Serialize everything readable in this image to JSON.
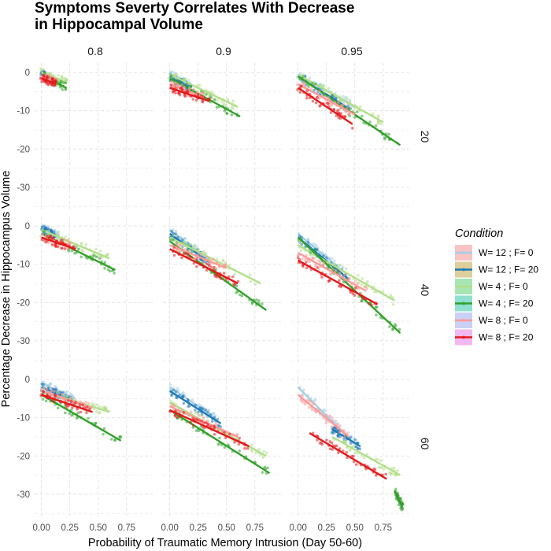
{
  "chart_data": {
    "type": "scatter",
    "title_lines": [
      "Symptoms Severty Correlates With Decrease",
      "in Hippocampal Volume"
    ],
    "xlabel": "Probability of Traumatic Memory Intrusion (Day 50-60)",
    "ylabel": "Percentage Decrease in Hippocampus Volume",
    "facet_cols": [
      "0.8",
      "0.9",
      "0.95"
    ],
    "facet_rows": [
      "20",
      "40",
      "60"
    ],
    "xlim": [
      -0.06,
      0.98
    ],
    "ylim": [
      -36,
      2.5
    ],
    "x_ticks": [
      0,
      0.25,
      0.5,
      0.75
    ],
    "x_tick_labels": [
      "0.00",
      "0.25",
      "0.50",
      "0.75"
    ],
    "y_ticks": [
      0,
      -10,
      -20,
      -30
    ],
    "y_tick_labels": [
      "0",
      "-10",
      "-20",
      "-30"
    ],
    "grid": true,
    "legend": {
      "title": "Condition",
      "position": "right",
      "entries": [
        {
          "label": "W= 12 ; F= 0",
          "color": "#a6cee3",
          "band": "#f9c4c4"
        },
        {
          "label": "W= 12 ; F= 20",
          "color": "#1f78b4",
          "band": "#dccf9c"
        },
        {
          "label": "W= 4 ; F= 0",
          "color": "#b2df8a",
          "band": "#a7e6b3"
        },
        {
          "label": "W= 4 ; F= 20",
          "color": "#33a02c",
          "band": "#8fe0d0"
        },
        {
          "label": "W= 8 ; F= 0",
          "color": "#fb9a99",
          "band": "#cad1f5"
        },
        {
          "label": "W= 8 ; F= 20",
          "color": "#e31a1c",
          "band": "#f3b8f1"
        }
      ]
    },
    "series_order": [
      "W= 12 ; F= 0",
      "W= 12 ; F= 20",
      "W= 4 ; F= 0",
      "W= 4 ; F= 20",
      "W= 8 ; F= 0",
      "W= 8 ; F= 20"
    ],
    "panels": [
      {
        "col": "0.8",
        "row": "20",
        "series": [
          {
            "x": [
              0.0,
              0.08
            ],
            "y": [
              -0.5,
              -1.5
            ]
          },
          {
            "x": [
              0.0,
              0.05
            ],
            "y": [
              -0.5,
              -1.0
            ]
          },
          {
            "x": [
              0.0,
              0.22
            ],
            "y": [
              0.0,
              -2.5
            ]
          },
          {
            "x": [
              0.02,
              0.22
            ],
            "y": [
              -1.0,
              -4.0
            ]
          },
          {
            "x": [
              0.0,
              0.12
            ],
            "y": [
              -1.0,
              -2.5
            ]
          },
          {
            "x": [
              0.0,
              0.13
            ],
            "y": [
              -1.5,
              -3.0
            ]
          }
        ]
      },
      {
        "col": "0.9",
        "row": "20",
        "series": [
          {
            "x": [
              0.0,
              0.2
            ],
            "y": [
              -0.5,
              -3.5
            ]
          },
          {
            "x": [
              0.0,
              0.18
            ],
            "y": [
              -1.0,
              -4.0
            ]
          },
          {
            "x": [
              0.0,
              0.6
            ],
            "y": [
              -0.5,
              -9.0
            ]
          },
          {
            "x": [
              0.0,
              0.62
            ],
            "y": [
              -1.5,
              -11.5
            ]
          },
          {
            "x": [
              0.0,
              0.3
            ],
            "y": [
              -3.0,
              -6.5
            ]
          },
          {
            "x": [
              0.0,
              0.35
            ],
            "y": [
              -4.0,
              -7.5
            ]
          }
        ]
      },
      {
        "col": "0.95",
        "row": "20",
        "series": [
          {
            "x": [
              0.0,
              0.5
            ],
            "y": [
              -0.5,
              -9.0
            ]
          },
          {
            "x": [
              0.0,
              0.45
            ],
            "y": [
              -1.0,
              -9.5
            ]
          },
          {
            "x": [
              0.0,
              0.75
            ],
            "y": [
              -0.5,
              -13.0
            ]
          },
          {
            "x": [
              0.0,
              0.9
            ],
            "y": [
              -1.0,
              -19.0
            ]
          },
          {
            "x": [
              0.0,
              0.5
            ],
            "y": [
              -3.0,
              -11.0
            ]
          },
          {
            "x": [
              0.0,
              0.48
            ],
            "y": [
              -4.0,
              -13.5
            ]
          }
        ]
      },
      {
        "col": "0.8",
        "row": "40",
        "series": [
          {
            "x": [
              0.0,
              0.15
            ],
            "y": [
              -0.5,
              -2.5
            ]
          },
          {
            "x": [
              0.0,
              0.12
            ],
            "y": [
              -1.0,
              -2.5
            ]
          },
          {
            "x": [
              0.0,
              0.6
            ],
            "y": [
              -1.0,
              -8.5
            ]
          },
          {
            "x": [
              0.0,
              0.65
            ],
            "y": [
              -2.0,
              -11.5
            ]
          },
          {
            "x": [
              0.0,
              0.25
            ],
            "y": [
              -3.0,
              -5.0
            ]
          },
          {
            "x": [
              0.0,
              0.3
            ],
            "y": [
              -3.0,
              -6.0
            ]
          }
        ]
      },
      {
        "col": "0.9",
        "row": "40",
        "series": [
          {
            "x": [
              0.0,
              0.3
            ],
            "y": [
              -1.0,
              -8.0
            ]
          },
          {
            "x": [
              0.0,
              0.35
            ],
            "y": [
              -2.0,
              -9.5
            ]
          },
          {
            "x": [
              0.0,
              0.8
            ],
            "y": [
              -3.0,
              -15.0
            ]
          },
          {
            "x": [
              0.0,
              0.85
            ],
            "y": [
              -4.0,
              -22.0
            ]
          },
          {
            "x": [
              0.0,
              0.5
            ],
            "y": [
              -5.0,
              -11.0
            ]
          },
          {
            "x": [
              0.0,
              0.6
            ],
            "y": [
              -6.0,
              -15.0
            ]
          }
        ]
      },
      {
        "col": "0.95",
        "row": "40",
        "series": [
          {
            "x": [
              0.0,
              0.4
            ],
            "y": [
              -2.0,
              -12.0
            ]
          },
          {
            "x": [
              0.0,
              0.45
            ],
            "y": [
              -3.0,
              -14.0
            ]
          },
          {
            "x": [
              0.0,
              0.85
            ],
            "y": [
              -5.0,
              -19.5
            ]
          },
          {
            "x": [
              0.0,
              0.9
            ],
            "y": [
              -3.0,
              -28.0
            ]
          },
          {
            "x": [
              0.0,
              0.6
            ],
            "y": [
              -7.0,
              -17.0
            ]
          },
          {
            "x": [
              0.0,
              0.7
            ],
            "y": [
              -9.0,
              -20.5
            ]
          }
        ]
      },
      {
        "col": "0.8",
        "row": "60",
        "series": [
          {
            "x": [
              0.0,
              0.3
            ],
            "y": [
              -1.0,
              -5.0
            ]
          },
          {
            "x": [
              0.0,
              0.28
            ],
            "y": [
              -2.0,
              -5.5
            ]
          },
          {
            "x": [
              0.0,
              0.6
            ],
            "y": [
              -3.0,
              -8.5
            ]
          },
          {
            "x": [
              0.0,
              0.7
            ],
            "y": [
              -4.0,
              -16.0
            ]
          },
          {
            "x": [
              0.0,
              0.45
            ],
            "y": [
              -3.0,
              -7.5
            ]
          },
          {
            "x": [
              0.0,
              0.45
            ],
            "y": [
              -4.0,
              -8.5
            ]
          }
        ]
      },
      {
        "col": "0.9",
        "row": "60",
        "series": [
          {
            "x": [
              0.0,
              0.4
            ],
            "y": [
              -2.0,
              -10.0
            ]
          },
          {
            "x": [
              0.0,
              0.45
            ],
            "y": [
              -3.0,
              -11.5
            ]
          },
          {
            "x": [
              0.0,
              0.85
            ],
            "y": [
              -6.0,
              -20.0
            ]
          },
          {
            "x": [
              0.0,
              0.88
            ],
            "y": [
              -8.0,
              -24.5
            ]
          },
          {
            "x": [
              0.0,
              0.6
            ],
            "y": [
              -7.0,
              -15.0
            ]
          },
          {
            "x": [
              0.0,
              0.7
            ],
            "y": [
              -8.0,
              -17.5
            ]
          }
        ]
      },
      {
        "col": "0.95",
        "row": "60",
        "series": [
          {
            "x": [
              0.0,
              0.5
            ],
            "y": [
              -2.0,
              -17.0
            ]
          },
          {
            "x": [
              0.3,
              0.55
            ],
            "y": [
              -13.0,
              -17.5
            ]
          },
          {
            "x": [
              0.3,
              0.9
            ],
            "y": [
              -15.0,
              -25.0
            ]
          },
          {
            "x": [
              0.85,
              0.92
            ],
            "y": [
              -29.0,
              -33.5
            ]
          },
          {
            "x": [
              0.0,
              0.45
            ],
            "y": [
              -4.0,
              -15.0
            ]
          },
          {
            "x": [
              0.1,
              0.78
            ],
            "y": [
              -14.0,
              -26.0
            ]
          }
        ]
      }
    ]
  }
}
